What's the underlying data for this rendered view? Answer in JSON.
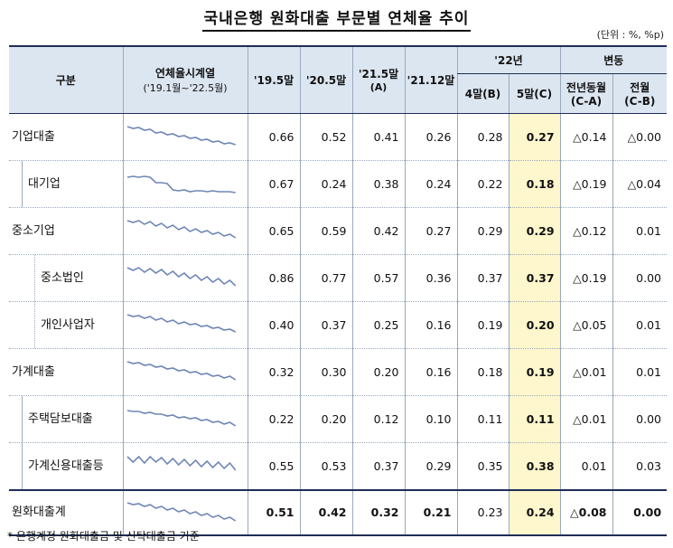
{
  "title": "국내은행 원화대출 부문별 연체율 추이",
  "unit": "(단위 : %, %p)",
  "headers": {
    "category": "구분",
    "spark_title": "연체율시계열",
    "spark_sub": "('19.1월~'22.5월)",
    "c1": "'19.5말",
    "c2": "'20.5말",
    "c3": "'21.5말",
    "c3_sub": "(A)",
    "c4": "'21.12말",
    "year22": "'22년",
    "c5": "4말(B)",
    "c6": "5말(C)",
    "change": "변동",
    "c7a": "전년동월",
    "c7b": "(C-A)",
    "c8a": "전월",
    "c8b": "(C-B)"
  },
  "rows": [
    {
      "label": "기업대출",
      "v1": "0.66",
      "v2": "0.52",
      "v3": "0.41",
      "v4": "0.26",
      "v5": "0.28",
      "v6": "0.27",
      "v7": "△0.14",
      "v8": "△0.00"
    },
    {
      "label": "대기업",
      "v1": "0.67",
      "v2": "0.24",
      "v3": "0.38",
      "v4": "0.24",
      "v5": "0.22",
      "v6": "0.18",
      "v7": "△0.19",
      "v8": "△0.04"
    },
    {
      "label": "중소기업",
      "v1": "0.65",
      "v2": "0.59",
      "v3": "0.42",
      "v4": "0.27",
      "v5": "0.29",
      "v6": "0.29",
      "v7": "△0.12",
      "v8": "0.01"
    },
    {
      "label": "중소법인",
      "v1": "0.86",
      "v2": "0.77",
      "v3": "0.57",
      "v4": "0.36",
      "v5": "0.37",
      "v6": "0.37",
      "v7": "△0.19",
      "v8": "0.00"
    },
    {
      "label": "개인사업자",
      "v1": "0.40",
      "v2": "0.37",
      "v3": "0.25",
      "v4": "0.16",
      "v5": "0.19",
      "v6": "0.20",
      "v7": "△0.05",
      "v8": "0.01"
    },
    {
      "label": "가계대출",
      "v1": "0.32",
      "v2": "0.30",
      "v3": "0.20",
      "v4": "0.16",
      "v5": "0.18",
      "v6": "0.19",
      "v7": "△0.01",
      "v8": "0.01"
    },
    {
      "label": "주택담보대출",
      "v1": "0.22",
      "v2": "0.20",
      "v3": "0.12",
      "v4": "0.10",
      "v5": "0.11",
      "v6": "0.11",
      "v7": "△0.01",
      "v8": "0.00"
    },
    {
      "label": "가계신용대출등",
      "v1": "0.55",
      "v2": "0.53",
      "v3": "0.37",
      "v4": "0.29",
      "v5": "0.35",
      "v6": "0.38",
      "v7": "0.01",
      "v8": "0.03"
    }
  ],
  "total": {
    "label": "원화대출계",
    "v1": "0.51",
    "v2": "0.42",
    "v3": "0.32",
    "v4": "0.21",
    "v5": "0.23",
    "v6": "0.24",
    "v7": "△0.08",
    "v8": "0.00"
  },
  "footnote": "* 은행계정 원화대출금 및 신탁대출금 기준",
  "colors": {
    "header_bg": "#dce6f1",
    "highlight_bg": "#fef6cc",
    "sparkline": "#6f86b5",
    "rule": "#1f2d57"
  }
}
